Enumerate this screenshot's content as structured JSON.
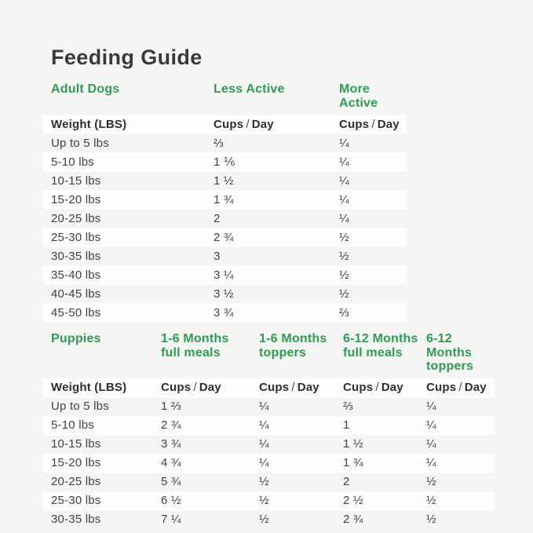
{
  "title": "Feeding Guide",
  "colors": {
    "accent_green": "#2e9d52",
    "background": "#f5f5f4",
    "row_stripe": "#fefefe",
    "title_text": "#3a3a3a",
    "body_text": "#414141"
  },
  "unit_label": {
    "cups": "Cups",
    "slash": "/",
    "day": "Day"
  },
  "tables": [
    {
      "id": "adult-dogs",
      "section_label": "Adult Dogs",
      "weight_label": "Weight (LBS)",
      "column_headers": [
        {
          "line1": "Less Active",
          "line2": ""
        },
        {
          "line1": "More Active",
          "line2": ""
        }
      ],
      "rows": [
        {
          "weight": "Up to 5 lbs",
          "cells": [
            "⅔",
            "¼"
          ]
        },
        {
          "weight": "5-10 lbs",
          "cells": [
            "1 ⅙",
            "¼"
          ]
        },
        {
          "weight": "10-15 lbs",
          "cells": [
            "1 ½",
            "¼"
          ]
        },
        {
          "weight": "15-20 lbs",
          "cells": [
            "1 ¾",
            "¼"
          ]
        },
        {
          "weight": "20-25 lbs",
          "cells": [
            "2",
            "¼"
          ]
        },
        {
          "weight": "25-30 lbs",
          "cells": [
            "2 ¾",
            "½"
          ]
        },
        {
          "weight": "30-35 lbs",
          "cells": [
            "3",
            "½"
          ]
        },
        {
          "weight": "35-40 lbs",
          "cells": [
            "3 ¼",
            "½"
          ]
        },
        {
          "weight": "40-45 lbs",
          "cells": [
            "3 ½",
            "½"
          ]
        },
        {
          "weight": "45-50 lbs",
          "cells": [
            "3 ¾",
            "⅔"
          ]
        }
      ]
    },
    {
      "id": "puppies",
      "section_label": "Puppies",
      "weight_label": "Weight (LBS)",
      "column_headers": [
        {
          "line1": "1-6 Months",
          "line2": "full meals"
        },
        {
          "line1": "1-6 Months",
          "line2": "toppers"
        },
        {
          "line1": "6-12 Months",
          "line2": "full meals"
        },
        {
          "line1": "6-12 Months",
          "line2": "toppers"
        }
      ],
      "rows": [
        {
          "weight": "Up to 5 lbs",
          "cells": [
            "1 ⅔",
            "¼",
            "⅔",
            "¼"
          ]
        },
        {
          "weight": "5-10 lbs",
          "cells": [
            "2 ¾",
            "¼",
            "1",
            "¼"
          ]
        },
        {
          "weight": "10-15 lbs",
          "cells": [
            "3 ¾",
            "¼",
            "1 ½",
            "¼"
          ]
        },
        {
          "weight": "15-20 lbs",
          "cells": [
            "4 ¾",
            "¼",
            "1 ¾",
            "¼"
          ]
        },
        {
          "weight": "20-25 lbs",
          "cells": [
            "5 ¾",
            "½",
            "2",
            "½"
          ]
        },
        {
          "weight": "25-30 lbs",
          "cells": [
            "6 ½",
            "½",
            "2 ½",
            "½"
          ]
        },
        {
          "weight": "30-35 lbs",
          "cells": [
            "7 ¼",
            "½",
            "2 ¾",
            "½"
          ]
        }
      ]
    }
  ]
}
